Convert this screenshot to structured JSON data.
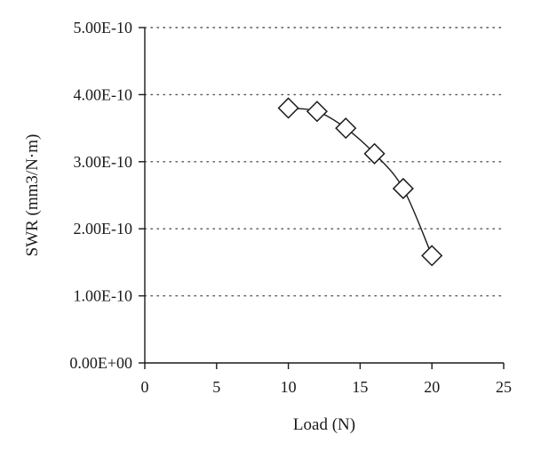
{
  "chart_data": {
    "type": "scatter",
    "title": "",
    "xlabel": "Load (N)",
    "ylabel": "SWR (mm3/N·m)",
    "xlim": [
      0,
      25
    ],
    "ylim": [
      0,
      5e-10
    ],
    "x_ticks": [
      0,
      5,
      10,
      15,
      20,
      25
    ],
    "x_tick_labels": [
      "0",
      "5",
      "10",
      "15",
      "20",
      "25"
    ],
    "y_ticks": [
      0,
      1e-10,
      2e-10,
      3e-10,
      4e-10,
      5e-10
    ],
    "y_tick_labels": [
      "0.00E+00",
      "1.00E-10",
      "2.00E-10",
      "3.00E-10",
      "4.00E-10",
      "5.00E-10"
    ],
    "grid": "horizontal dotted",
    "marker": "diamond",
    "trendline": "smooth curve",
    "series": [
      {
        "x": [
          10,
          12,
          14,
          16,
          18,
          20
        ],
        "values": [
          3.8e-10,
          3.75e-10,
          3.5e-10,
          3.12e-10,
          2.6e-10,
          1.6e-10
        ]
      }
    ],
    "colors": {
      "marker_stroke": "#1a1a1a",
      "line": "#1a1a1a",
      "grid": "#555555",
      "axis": "#1a1a1a"
    }
  }
}
